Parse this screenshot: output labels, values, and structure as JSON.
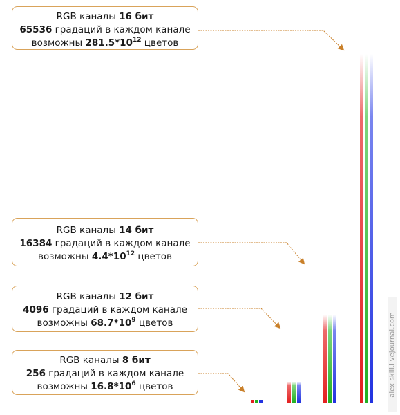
{
  "cards": [
    {
      "id": "16",
      "line1_prefix": "RGB каналы ",
      "bits": "16 бит",
      "levels": "65536",
      "line2_suffix": " градаций в каждом канале",
      "line3_prefix": "возможны ",
      "colors_base": "281.5*10",
      "colors_exp": "12",
      "line3_suffix": " цветов"
    },
    {
      "id": "14",
      "line1_prefix": "RGB каналы ",
      "bits": "14 бит",
      "levels": "16384",
      "line2_suffix": " градаций в каждом канале",
      "line3_prefix": "возможны ",
      "colors_base": "4.4*10",
      "colors_exp": "12",
      "line3_suffix": " цветов"
    },
    {
      "id": "12",
      "line1_prefix": "RGB каналы ",
      "bits": "12 бит",
      "levels": "4096",
      "line2_suffix": " градаций в каждом канале",
      "line3_prefix": "возможны ",
      "colors_base": "68.7*10",
      "colors_exp": "9",
      "line3_suffix": " цветов"
    },
    {
      "id": "8",
      "line1_prefix": "RGB каналы ",
      "bits": "8 бит",
      "levels": "256",
      "line2_suffix": " градаций в каждом канале",
      "line3_prefix": "возможны ",
      "colors_base": "16.8*10",
      "colors_exp": "6",
      "line3_suffix": " цветов"
    }
  ],
  "watermark": "alex-skill.livejournal.com",
  "colors": {
    "red": "#e83030",
    "green": "#2fb82f",
    "blue": "#2f3fe8",
    "accent": "#c9802a",
    "border": "#d9a35a"
  }
}
